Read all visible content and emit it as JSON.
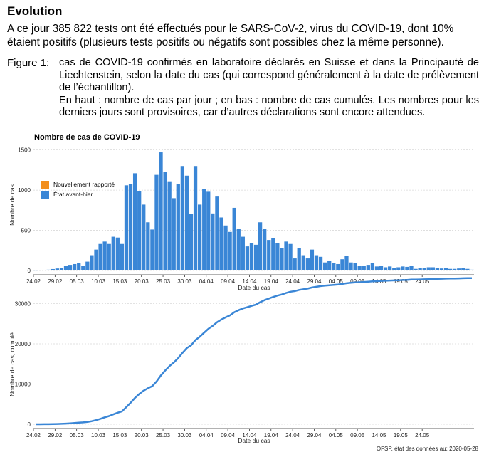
{
  "page": {
    "heading": "Evolution",
    "intro": "A ce jour 385 822 tests ont été effectués pour le SARS-CoV-2, virus du COVID-19, dont 10% étaient positifs (plusieurs tests positifs ou négatifs sont possibles chez la même personne).",
    "figure_label": "Figure 1:",
    "caption_line1": "cas de COVID-19 confirmés en laboratoire déclarés en Suisse et dans la Principauté de Liechtenstein, selon la date du cas (qui correspond généralement à la date de prélèvement de l’échantillon).",
    "caption_line2": "En haut : nombre de cas par jour ; en bas : nombre de cas cumulés. Les nombres pour les derniers jours sont provisoires, car d’autres déclarations sont encore attendues.",
    "source": "OFSP, état des données au: 2020-05-28"
  },
  "colors": {
    "daily_bar": "#3a86d6",
    "new_reported": "#f28e1c",
    "cumulative_line": "#3a86d6",
    "grid": "#d9d9d9"
  },
  "chart_data": [
    {
      "type": "bar",
      "title": "Nombre de cas de COVID-19",
      "xlabel": "Date du cas",
      "ylabel": "Nombre de cas",
      "ylim": [
        0,
        1550
      ],
      "yticks": [
        0,
        500,
        1000,
        1500
      ],
      "xtick_labels": [
        "24.02",
        "29.02",
        "05.03",
        "10.03",
        "15.03",
        "20.03",
        "25.03",
        "30.03",
        "04.04",
        "09.04",
        "14.04",
        "19.04",
        "24.04",
        "29.04",
        "04.05",
        "09.05",
        "14.05",
        "19.05",
        "24.05"
      ],
      "grid": true,
      "legend_position": "top-left",
      "legend": [
        {
          "label": "Nouvellement rapporté",
          "color": "#f28e1c"
        },
        {
          "label": "État avant-hier",
          "color": "#3a86d6"
        }
      ],
      "series": [
        {
          "name": "État avant-hier",
          "start_date": "24.02",
          "values": [
            2,
            5,
            8,
            10,
            18,
            25,
            35,
            55,
            70,
            80,
            90,
            60,
            110,
            190,
            260,
            330,
            360,
            330,
            420,
            410,
            330,
            1060,
            1080,
            1210,
            990,
            820,
            600,
            510,
            1190,
            1470,
            1230,
            1110,
            900,
            1080,
            1300,
            1180,
            700,
            1300,
            820,
            1010,
            980,
            710,
            920,
            660,
            560,
            480,
            780,
            520,
            420,
            300,
            340,
            320,
            600,
            520,
            380,
            400,
            340,
            280,
            360,
            330,
            150,
            280,
            190,
            150,
            260,
            190,
            170,
            100,
            120,
            90,
            80,
            140,
            180,
            100,
            90,
            60,
            60,
            70,
            90,
            50,
            60,
            40,
            50,
            30,
            40,
            50,
            45,
            60,
            20,
            30,
            30,
            40,
            40,
            30,
            25,
            35,
            20,
            20,
            25,
            30,
            20,
            10
          ]
        }
      ]
    },
    {
      "type": "line",
      "xlabel": "Date du cas",
      "ylabel": "Nombre de cas, cumulé",
      "ylim": [
        0,
        31500
      ],
      "yticks": [
        0,
        10000,
        20000,
        30000
      ],
      "xtick_labels": [
        "24.02",
        "29.02",
        "05.03",
        "10.03",
        "15.03",
        "20.03",
        "25.03",
        "30.03",
        "04.04",
        "09.04",
        "14.04",
        "19.04",
        "24.04",
        "29.04",
        "04.05",
        "09.05",
        "14.05",
        "19.05",
        "24.05"
      ],
      "grid": true,
      "series": [
        {
          "name": "",
          "derived_from": "cumulative sum of daily cases"
        }
      ]
    }
  ]
}
